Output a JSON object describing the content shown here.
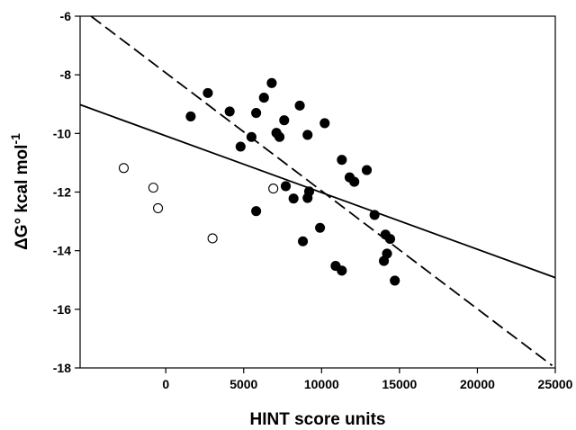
{
  "chart_data": {
    "type": "scatter",
    "xlabel": "HINT score units",
    "ylabel": "ΔG° kcal mol",
    "ylabel_superscript": "-1",
    "xlim": [
      -5500,
      25000
    ],
    "ylim": [
      -18,
      -6
    ],
    "x_ticks": [
      0,
      5000,
      10000,
      15000,
      20000,
      25000
    ],
    "y_ticks": [
      -18,
      -16,
      -14,
      -12,
      -10,
      -8,
      -6
    ],
    "grid": false,
    "series": [
      {
        "marker": "filled-circle",
        "points": [
          [
            1600,
            -9.42
          ],
          [
            2700,
            -8.62
          ],
          [
            4100,
            -9.25
          ],
          [
            4800,
            -10.45
          ],
          [
            5500,
            -10.12
          ],
          [
            5800,
            -9.3
          ],
          [
            6300,
            -8.78
          ],
          [
            6800,
            -8.28
          ],
          [
            7100,
            -9.98
          ],
          [
            7300,
            -10.12
          ],
          [
            7600,
            -9.55
          ],
          [
            8600,
            -9.05
          ],
          [
            9100,
            -10.05
          ],
          [
            10200,
            -9.65
          ],
          [
            11300,
            -10.9
          ],
          [
            11800,
            -11.5
          ],
          [
            12100,
            -11.65
          ],
          [
            12900,
            -11.25
          ],
          [
            5800,
            -12.65
          ],
          [
            7700,
            -11.8
          ],
          [
            8200,
            -12.22
          ],
          [
            9100,
            -12.2
          ],
          [
            9200,
            -11.98
          ],
          [
            8800,
            -13.68
          ],
          [
            9900,
            -13.22
          ],
          [
            10900,
            -14.52
          ],
          [
            11300,
            -14.68
          ],
          [
            13400,
            -12.78
          ],
          [
            14100,
            -13.45
          ],
          [
            14400,
            -13.6
          ],
          [
            14200,
            -14.1
          ],
          [
            14000,
            -14.35
          ],
          [
            14700,
            -15.02
          ]
        ]
      },
      {
        "marker": "open-circle",
        "points": [
          [
            -2700,
            -11.18
          ],
          [
            -800,
            -11.85
          ],
          [
            -500,
            -12.55
          ],
          [
            3000,
            -13.58
          ],
          [
            6900,
            -11.88
          ]
        ]
      }
    ],
    "lines": [
      {
        "style": "solid",
        "points": [
          [
            -5500,
            -9.02
          ],
          [
            25000,
            -14.92
          ]
        ]
      },
      {
        "style": "dashed",
        "points": [
          [
            -4800,
            -6.0
          ],
          [
            24800,
            -17.92
          ]
        ]
      }
    ]
  }
}
